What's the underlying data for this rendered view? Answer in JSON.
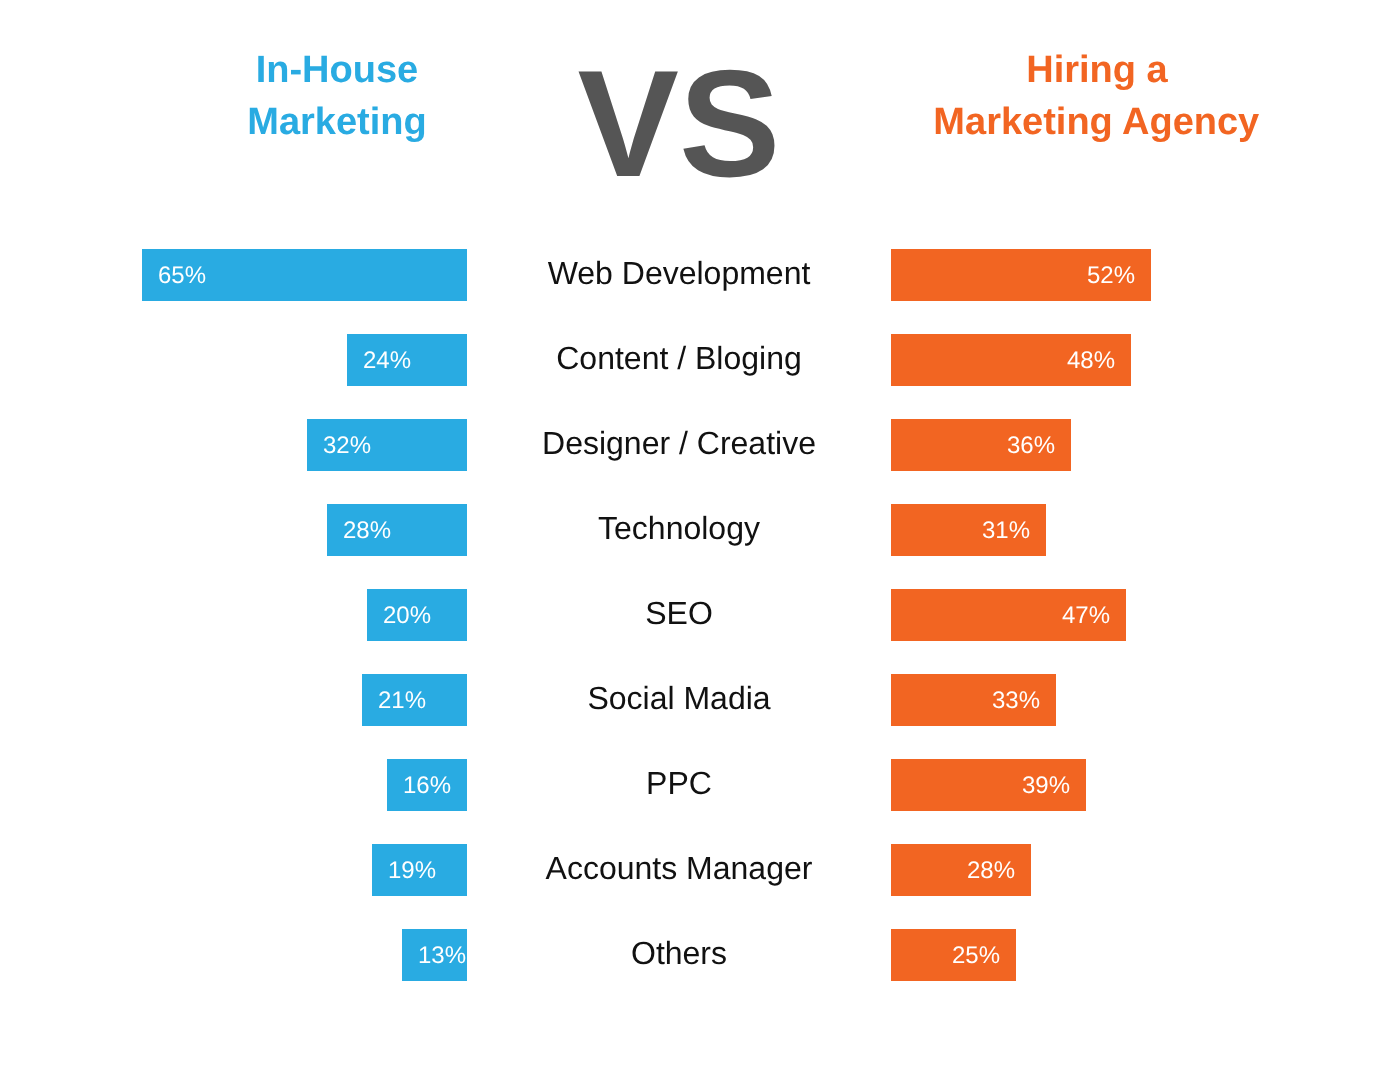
{
  "chart_data": [
    {
      "type": "bar",
      "orientation": "horizontal",
      "title": "VS",
      "categories": [
        "Web Development",
        "Content / Bloging",
        "Designer / Creative",
        "Technology",
        "SEO",
        "Social Madia",
        "PPC",
        "Accounts Manager",
        "Others"
      ],
      "series": [
        {
          "name": "In-House\nMarketing",
          "color": "#29abe2",
          "values": [
            65,
            24,
            32,
            28,
            20,
            21,
            16,
            19,
            13
          ],
          "value_labels": [
            "65%",
            "24%",
            "32%",
            "28%",
            "20%",
            "21%",
            "16%",
            "19%",
            "13%"
          ]
        }
      ]
    },
    {
      "type": "bar",
      "orientation": "horizontal",
      "categories": [
        null,
        null,
        null,
        null,
        null,
        null,
        null,
        null,
        null
      ],
      "series": [
        {
          "name": "Hiring a\nMarketing Agency",
          "color": "#f26522",
          "values": [
            52,
            48,
            36,
            31,
            47,
            33,
            39,
            28,
            25
          ],
          "value_labels": [
            "52%",
            "48%",
            "36%",
            "31%",
            "47%",
            "33%",
            "39%",
            "28%",
            "25%"
          ]
        }
      ]
    }
  ]
}
